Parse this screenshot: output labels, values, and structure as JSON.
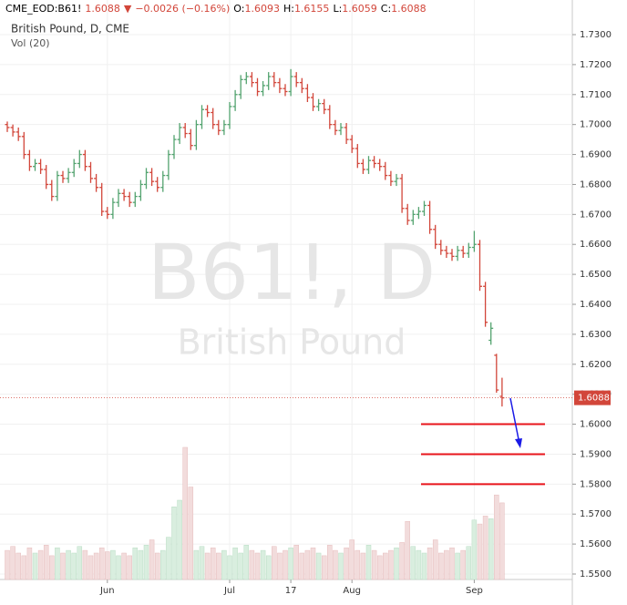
{
  "chart_data": {
    "type": "ohlc",
    "header": {
      "symbol": "CME_EOD:B61!",
      "last": "1.6088",
      "arrow": "▼",
      "change": "−0.0026 (−0.16%)",
      "fields": [
        {
          "key": "O:",
          "val": "1.6093"
        },
        {
          "key": "H:",
          "val": "1.6155"
        },
        {
          "key": "L:",
          "val": "1.6059"
        },
        {
          "key": "C:",
          "val": "1.6088"
        }
      ]
    },
    "subtitle": "British Pound, D, CME",
    "volume_label": "Vol (20)",
    "watermark": "B61!, D",
    "watermark_sub": "British Pound",
    "up_color": "#53a36f",
    "down_color": "#d2463a",
    "open": [
      1.7,
      1.699,
      1.6975,
      1.696,
      1.69,
      1.686,
      1.687,
      1.685,
      1.68,
      1.676,
      1.683,
      1.682,
      1.684,
      1.687,
      1.69,
      1.686,
      1.682,
      1.679,
      1.671,
      1.67,
      1.674,
      1.677,
      1.676,
      1.674,
      1.676,
      1.68,
      1.684,
      1.681,
      1.679,
      1.683,
      1.69,
      1.695,
      1.699,
      1.697,
      1.693,
      1.7,
      1.705,
      1.704,
      1.7,
      1.698,
      1.7,
      1.706,
      1.71,
      1.715,
      1.716,
      1.714,
      1.711,
      1.713,
      1.716,
      1.714,
      1.712,
      1.711,
      1.716,
      1.714,
      1.712,
      1.709,
      1.706,
      1.707,
      1.705,
      1.7,
      1.698,
      1.699,
      1.695,
      1.692,
      1.687,
      1.685,
      1.688,
      1.687,
      1.686,
      1.683,
      1.681,
      1.682,
      1.672,
      1.668,
      1.67,
      1.671,
      1.673,
      1.665,
      1.66,
      1.658,
      1.657,
      1.656,
      1.658,
      1.657,
      1.659,
      1.66,
      1.646,
      1.628,
      1.623,
      1.6093
    ],
    "high": [
      1.701,
      1.7,
      1.699,
      1.6975,
      1.6915,
      1.6885,
      1.6885,
      1.6865,
      1.6815,
      1.6845,
      1.6845,
      1.6855,
      1.6885,
      1.6915,
      1.6915,
      1.6875,
      1.6835,
      1.6805,
      1.6725,
      1.6755,
      1.6785,
      1.6785,
      1.6775,
      1.6775,
      1.6815,
      1.6855,
      1.6855,
      1.6825,
      1.6845,
      1.6915,
      1.6965,
      1.7005,
      1.7005,
      1.6985,
      1.7015,
      1.7065,
      1.7065,
      1.7055,
      1.7015,
      1.7015,
      1.7075,
      1.7115,
      1.7165,
      1.7175,
      1.7175,
      1.7155,
      1.7145,
      1.7175,
      1.7175,
      1.7155,
      1.7135,
      1.7185,
      1.7175,
      1.7155,
      1.7135,
      1.7105,
      1.7085,
      1.7085,
      1.7065,
      1.7015,
      1.7005,
      1.7005,
      1.6965,
      1.6935,
      1.6885,
      1.6895,
      1.6895,
      1.6885,
      1.6875,
      1.6845,
      1.6835,
      1.6835,
      1.6735,
      1.6715,
      1.6725,
      1.6745,
      1.6745,
      1.6665,
      1.6615,
      1.6595,
      1.6585,
      1.6595,
      1.6595,
      1.6605,
      1.6645,
      1.6615,
      1.6475,
      1.634,
      1.6235,
      1.6155
    ],
    "low": [
      1.6975,
      1.696,
      1.6945,
      1.6885,
      1.6845,
      1.6845,
      1.6835,
      1.6785,
      1.6745,
      1.6745,
      1.6805,
      1.6805,
      1.6825,
      1.6855,
      1.6845,
      1.6805,
      1.6775,
      1.6695,
      1.6685,
      1.6685,
      1.6725,
      1.6745,
      1.6725,
      1.6725,
      1.6745,
      1.6785,
      1.6795,
      1.6775,
      1.6775,
      1.6815,
      1.6885,
      1.6935,
      1.6955,
      1.6915,
      1.6915,
      1.6985,
      1.7025,
      1.6985,
      1.6965,
      1.6965,
      1.6985,
      1.7045,
      1.7085,
      1.7135,
      1.7125,
      1.7095,
      1.7095,
      1.7115,
      1.7125,
      1.7105,
      1.7095,
      1.7095,
      1.7125,
      1.7105,
      1.7075,
      1.7045,
      1.7045,
      1.7035,
      1.6985,
      1.6965,
      1.6965,
      1.6935,
      1.6905,
      1.6855,
      1.6835,
      1.6835,
      1.6855,
      1.6845,
      1.6815,
      1.6795,
      1.6795,
      1.6705,
      1.6665,
      1.6665,
      1.6685,
      1.6695,
      1.6635,
      1.6585,
      1.6565,
      1.6555,
      1.6545,
      1.6545,
      1.6555,
      1.6555,
      1.6575,
      1.6445,
      1.6325,
      1.6265,
      1.6105,
      1.6059
    ],
    "close": [
      1.699,
      1.6975,
      1.696,
      1.69,
      1.686,
      1.687,
      1.685,
      1.68,
      1.676,
      1.683,
      1.682,
      1.684,
      1.687,
      1.69,
      1.686,
      1.682,
      1.679,
      1.671,
      1.67,
      1.674,
      1.677,
      1.676,
      1.674,
      1.676,
      1.68,
      1.684,
      1.681,
      1.679,
      1.683,
      1.69,
      1.695,
      1.699,
      1.697,
      1.693,
      1.7,
      1.705,
      1.704,
      1.7,
      1.698,
      1.7,
      1.706,
      1.71,
      1.715,
      1.716,
      1.714,
      1.711,
      1.713,
      1.716,
      1.714,
      1.712,
      1.711,
      1.716,
      1.714,
      1.712,
      1.709,
      1.706,
      1.707,
      1.705,
      1.7,
      1.698,
      1.699,
      1.695,
      1.692,
      1.687,
      1.685,
      1.688,
      1.687,
      1.686,
      1.683,
      1.681,
      1.682,
      1.672,
      1.668,
      1.67,
      1.671,
      1.673,
      1.665,
      1.66,
      1.658,
      1.657,
      1.656,
      1.658,
      1.657,
      1.659,
      1.66,
      1.646,
      1.634,
      1.632,
      1.6114,
      1.6088
    ],
    "volume": [
      22,
      25,
      20,
      18,
      24,
      20,
      22,
      26,
      18,
      24,
      20,
      22,
      20,
      25,
      22,
      18,
      20,
      24,
      21,
      22,
      18,
      20,
      18,
      24,
      22,
      26,
      30,
      20,
      22,
      32,
      55,
      60,
      100,
      70,
      22,
      25,
      20,
      24,
      20,
      22,
      18,
      24,
      20,
      26,
      22,
      20,
      22,
      18,
      25,
      20,
      22,
      24,
      26,
      20,
      22,
      24,
      20,
      18,
      26,
      22,
      20,
      24,
      30,
      22,
      20,
      26,
      22,
      18,
      20,
      22,
      24,
      28,
      44,
      25,
      22,
      20,
      24,
      30,
      20,
      22,
      24,
      20,
      22,
      25,
      45,
      42,
      48,
      46,
      64,
      58
    ],
    "ylim": [
      1.548,
      1.735
    ],
    "yticks": [
      {
        "value": 1.73,
        "label": "1.7300"
      },
      {
        "value": 1.72,
        "label": "1.7200"
      },
      {
        "value": 1.71,
        "label": "1.7100"
      },
      {
        "value": 1.7,
        "label": "1.7000"
      },
      {
        "value": 1.69,
        "label": "1.6900"
      },
      {
        "value": 1.68,
        "label": "1.6800"
      },
      {
        "value": 1.67,
        "label": "1.6700"
      },
      {
        "value": 1.66,
        "label": "1.6600"
      },
      {
        "value": 1.65,
        "label": "1.6500"
      },
      {
        "value": 1.64,
        "label": "1.6400"
      },
      {
        "value": 1.63,
        "label": "1.6300"
      },
      {
        "value": 1.62,
        "label": "1.6200"
      },
      {
        "value": 1.61,
        "label": "1.6100"
      },
      {
        "value": 1.6,
        "label": "1.6000"
      },
      {
        "value": 1.59,
        "label": "1.5900"
      },
      {
        "value": 1.58,
        "label": "1.5800"
      },
      {
        "value": 1.57,
        "label": "1.5700"
      },
      {
        "value": 1.56,
        "label": "1.5600"
      },
      {
        "value": 1.55,
        "label": "1.5500"
      }
    ],
    "xticks": [
      {
        "value": 18,
        "label": "Jun"
      },
      {
        "value": 40,
        "label": "Jul"
      },
      {
        "value": 51,
        "label": "17"
      },
      {
        "value": 62,
        "label": "Aug"
      },
      {
        "value": 84,
        "label": "Sep"
      }
    ],
    "levels": [
      1.6,
      1.59,
      1.58
    ],
    "level_color": "#e8141b",
    "grid": true
  }
}
